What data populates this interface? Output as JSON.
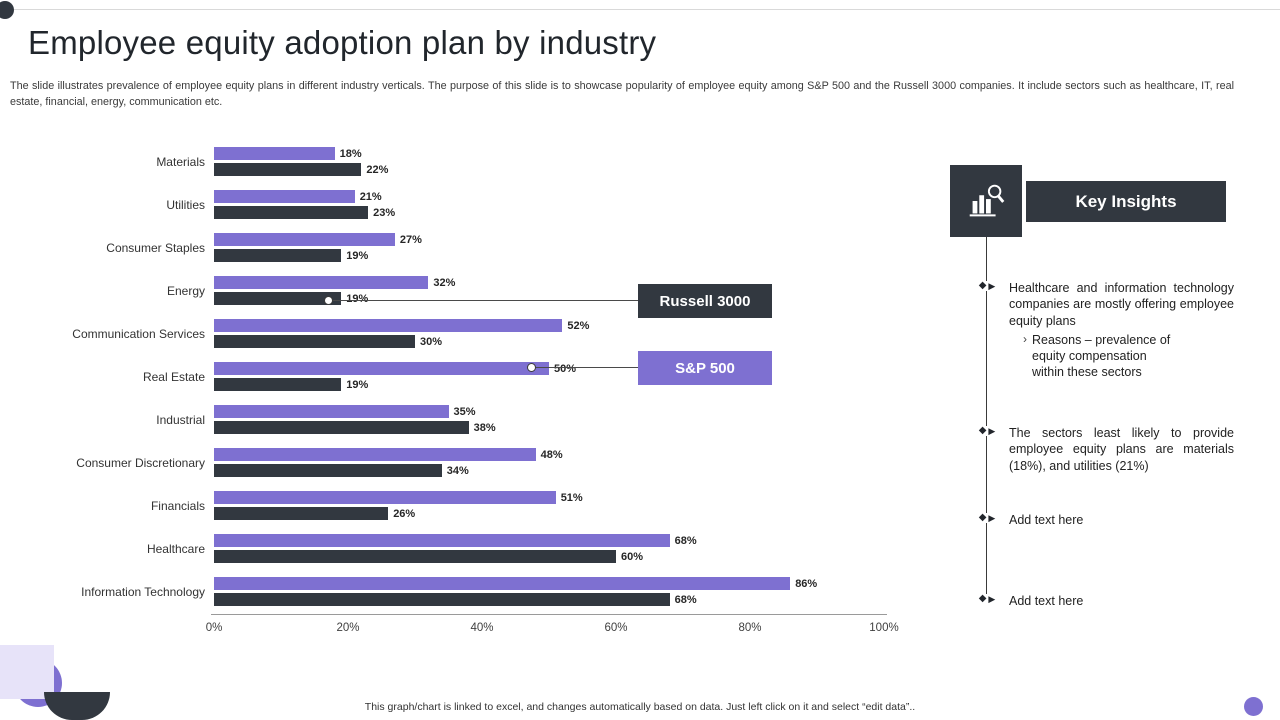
{
  "slide": {
    "title": "Employee equity adoption plan by industry",
    "subtitle": "The slide illustrates prevalence of employee equity plans in different industry verticals. The purpose of this slide is to showcase popularity of employee equity among S&P 500 and the Russell 3000 companies. It include sectors such as healthcare, IT, real estate, financial, energy, communication etc.",
    "footer": "This graph/chart is linked to excel, and changes automatically based on data. Just left click on it and select “edit data”.."
  },
  "chart_data": {
    "type": "bar",
    "orientation": "horizontal",
    "title": "Employee equity adoption plan by industry",
    "categories": [
      "Materials",
      "Utilities",
      "Consumer Staples",
      "Energy",
      "Communication Services",
      "Real Estate",
      "Industrial",
      "Consumer Discretionary",
      "Financials",
      "Healthcare",
      "Information Technology"
    ],
    "series": [
      {
        "name": "S&P 500",
        "color": "#7e70d1",
        "values": [
          18,
          21,
          27,
          32,
          52,
          50,
          35,
          48,
          51,
          68,
          86
        ]
      },
      {
        "name": "Russell 3000",
        "color": "#323840",
        "values": [
          22,
          23,
          19,
          19,
          30,
          19,
          38,
          34,
          26,
          60,
          68
        ]
      }
    ],
    "xlabel": "",
    "ylabel": "",
    "xlim": [
      0,
      100
    ],
    "x_ticks": [
      "0%",
      "20%",
      "40%",
      "60%",
      "80%",
      "100%"
    ],
    "value_suffix": "%",
    "grid": false,
    "legend_position": "floating-callouts"
  },
  "insights": {
    "title": "Key Insights",
    "icon": "bar-chart-magnifier-icon",
    "marker_diamond": "◆",
    "marker_play": "▶",
    "items": [
      {
        "text": "Healthcare and information technology companies are mostly offering employee equity plans",
        "sub_marker": "›",
        "sub": "Reasons – prevalence of equity compensation within these sectors"
      },
      {
        "text": "The sectors least likely to provide employee equity plans are materials (18%), and utilities (21%)"
      },
      {
        "text": "Add text here"
      },
      {
        "text": "Add text here"
      }
    ]
  },
  "colors": {
    "purple": "#7e70d1",
    "dark": "#323840",
    "lavender": "#e7e3f9"
  }
}
